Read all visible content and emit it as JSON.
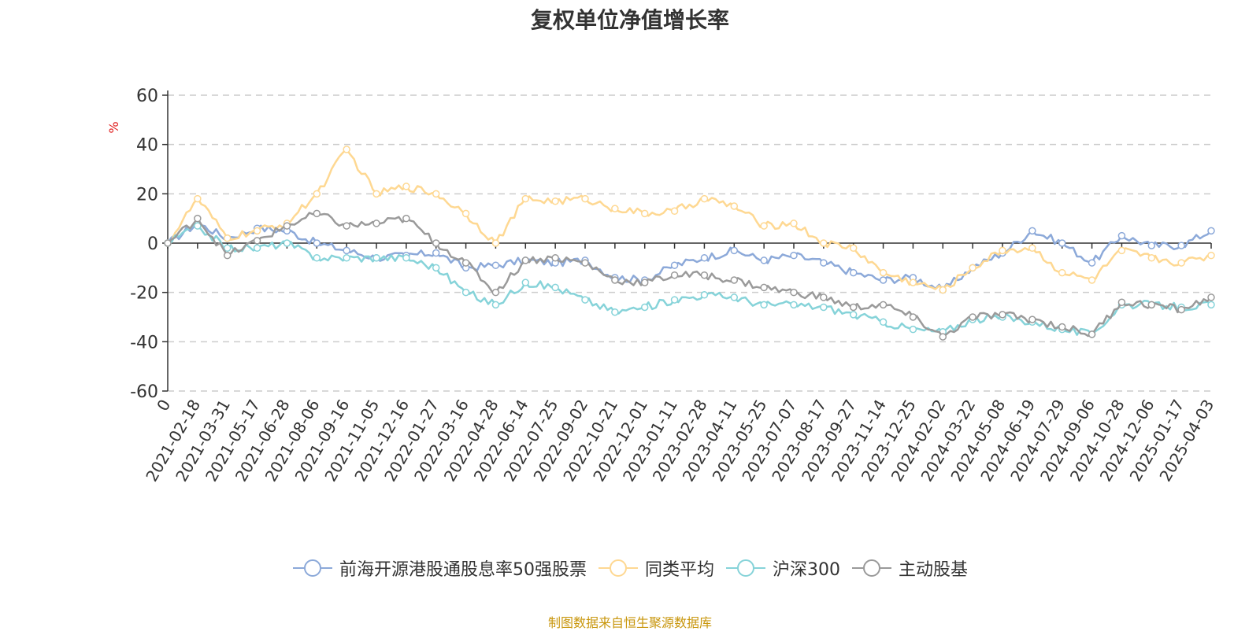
{
  "title": "复权单位净值增长率",
  "source_text": "制图数据来自恒生聚源数据库",
  "colors": {
    "fund": "#8ca9d9",
    "peer": "#fed892",
    "hs300": "#86d3d9",
    "active": "#9a9a9a",
    "unit": "#e02020",
    "source": "#c8960c"
  },
  "chart_data": {
    "type": "line",
    "title": "复权单位净值增长率",
    "xlabel": "",
    "ylabel": "%",
    "ylim": [
      -60,
      60
    ],
    "yticks": [
      -60,
      -40,
      -20,
      0,
      20,
      40,
      60
    ],
    "grid": true,
    "legend_position": "bottom",
    "categories": [
      "0",
      "2021-02-18",
      "2021-03-31",
      "2021-05-17",
      "2021-06-28",
      "2021-08-06",
      "2021-09-16",
      "2021-11-05",
      "2021-12-16",
      "2022-01-27",
      "2022-03-16",
      "2022-04-28",
      "2022-06-14",
      "2022-07-25",
      "2022-09-02",
      "2022-10-21",
      "2022-12-01",
      "2023-01-11",
      "2023-02-28",
      "2023-04-11",
      "2023-05-25",
      "2023-07-07",
      "2023-08-17",
      "2023-09-27",
      "2023-11-14",
      "2023-12-25",
      "2024-02-02",
      "2024-03-22",
      "2024-05-08",
      "2024-06-19",
      "2024-07-29",
      "2024-09-06",
      "2024-10-28",
      "2024-12-06",
      "2025-01-17",
      "2025-04-03"
    ],
    "series": [
      {
        "name": "前海开源港股通股息率50强股票",
        "color_key": "fund",
        "values": [
          0,
          8,
          2,
          6,
          5,
          0,
          -3,
          -6,
          -5,
          -4,
          -10,
          -9,
          -7,
          -8,
          -7,
          -14,
          -15,
          -9,
          -6,
          -3,
          -7,
          -5,
          -8,
          -12,
          -15,
          -14,
          -19,
          -10,
          -4,
          5,
          0,
          -8,
          3,
          -1,
          -1,
          5
        ]
      },
      {
        "name": "同类平均",
        "color_key": "peer",
        "values": [
          0,
          18,
          2,
          5,
          8,
          20,
          38,
          20,
          23,
          20,
          12,
          0,
          18,
          17,
          18,
          14,
          12,
          13,
          18,
          15,
          7,
          8,
          0,
          -2,
          -12,
          -16,
          -19,
          -10,
          -3,
          -2,
          -12,
          -15,
          -3,
          -6,
          -8,
          -5
        ]
      },
      {
        "name": "沪深300",
        "color_key": "hs300",
        "values": [
          0,
          7,
          -2,
          -2,
          0,
          -6,
          -6,
          -6,
          -6,
          -10,
          -20,
          -25,
          -16,
          -18,
          -23,
          -28,
          -26,
          -23,
          -21,
          -22,
          -25,
          -25,
          -26,
          -29,
          -32,
          -35,
          -36,
          -31,
          -30,
          -32,
          -35,
          -37,
          -25,
          -25,
          -26,
          -25
        ]
      },
      {
        "name": "主动股基",
        "color_key": "active",
        "values": [
          0,
          10,
          -5,
          1,
          7,
          12,
          7,
          8,
          10,
          0,
          -8,
          -20,
          -7,
          -6,
          -8,
          -15,
          -16,
          -13,
          -13,
          -15,
          -18,
          -20,
          -22,
          -26,
          -25,
          -30,
          -38,
          -30,
          -29,
          -31,
          -34,
          -37,
          -24,
          -25,
          -27,
          -22
        ]
      }
    ]
  }
}
